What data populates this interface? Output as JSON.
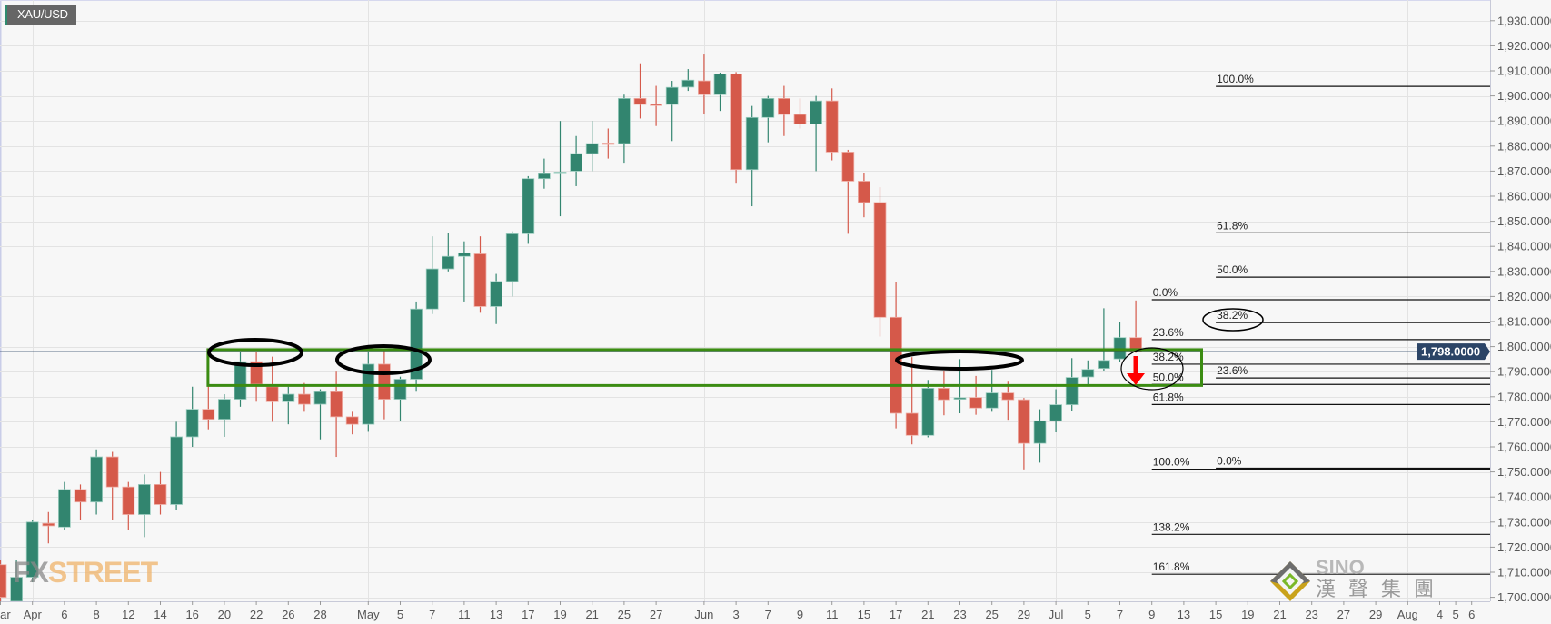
{
  "chart_data": {
    "type": "candlestick",
    "symbol": "XAU/USD",
    "ylim": [
      1700,
      1930
    ],
    "y_tick_labels": [
      "1,700.0000",
      "1,710.0000",
      "1,720.0000",
      "1,730.0000",
      "1,740.0000",
      "1,750.0000",
      "1,760.0000",
      "1,770.0000",
      "1,780.0000",
      "1,790.0000",
      "1,800.0000",
      "1,810.0000",
      "1,820.0000",
      "1,830.0000",
      "1,840.0000",
      "1,850.0000",
      "1,860.0000",
      "1,870.0000",
      "1,880.0000",
      "1,890.0000",
      "1,900.0000",
      "1,910.0000",
      "1,920.0000",
      "1,930.0000"
    ],
    "x_ticks": [
      {
        "label": "Mar",
        "date": "2021-03-30"
      },
      {
        "label": "Apr",
        "date": "2021-04-01"
      },
      {
        "label": "6",
        "date": "2021-04-06"
      },
      {
        "label": "8",
        "date": "2021-04-08"
      },
      {
        "label": "12",
        "date": "2021-04-12"
      },
      {
        "label": "14",
        "date": "2021-04-14"
      },
      {
        "label": "16",
        "date": "2021-04-16"
      },
      {
        "label": "20",
        "date": "2021-04-20"
      },
      {
        "label": "22",
        "date": "2021-04-22"
      },
      {
        "label": "26",
        "date": "2021-04-26"
      },
      {
        "label": "28",
        "date": "2021-04-28"
      },
      {
        "label": "May",
        "date": "2021-05-03"
      },
      {
        "label": "5",
        "date": "2021-05-05"
      },
      {
        "label": "7",
        "date": "2021-05-07"
      },
      {
        "label": "11",
        "date": "2021-05-11"
      },
      {
        "label": "13",
        "date": "2021-05-13"
      },
      {
        "label": "17",
        "date": "2021-05-17"
      },
      {
        "label": "19",
        "date": "2021-05-19"
      },
      {
        "label": "21",
        "date": "2021-05-21"
      },
      {
        "label": "25",
        "date": "2021-05-25"
      },
      {
        "label": "27",
        "date": "2021-05-27"
      },
      {
        "label": "Jun",
        "date": "2021-06-01"
      },
      {
        "label": "3",
        "date": "2021-06-03"
      },
      {
        "label": "7",
        "date": "2021-06-07"
      },
      {
        "label": "9",
        "date": "2021-06-09"
      },
      {
        "label": "11",
        "date": "2021-06-11"
      },
      {
        "label": "15",
        "date": "2021-06-15"
      },
      {
        "label": "17",
        "date": "2021-06-17"
      },
      {
        "label": "21",
        "date": "2021-06-21"
      },
      {
        "label": "23",
        "date": "2021-06-23"
      },
      {
        "label": "25",
        "date": "2021-06-25"
      },
      {
        "label": "29",
        "date": "2021-06-29"
      },
      {
        "label": "Jul",
        "date": "2021-07-01"
      },
      {
        "label": "5",
        "date": "2021-07-05"
      },
      {
        "label": "7",
        "date": "2021-07-07"
      },
      {
        "label": "9",
        "date": "2021-07-09"
      },
      {
        "label": "13",
        "date": "2021-07-13"
      },
      {
        "label": "15",
        "date": "2021-07-15"
      },
      {
        "label": "19",
        "date": "2021-07-19"
      },
      {
        "label": "21",
        "date": "2021-07-21"
      },
      {
        "label": "23",
        "date": "2021-07-23"
      },
      {
        "label": "27",
        "date": "2021-07-27"
      },
      {
        "label": "29",
        "date": "2021-07-29"
      },
      {
        "label": "Aug",
        "date": "2021-08-02"
      },
      {
        "label": "4",
        "date": "2021-08-04"
      },
      {
        "label": "5",
        "date": "2021-08-05"
      },
      {
        "label": "6",
        "date": "2021-08-06"
      }
    ],
    "month_gridlines": [
      "2021-04-01",
      "2021-05-03",
      "2021-06-01",
      "2021-07-01",
      "2021-08-02"
    ],
    "grid": true,
    "candles_columns": [
      "date",
      "open",
      "high",
      "low",
      "close"
    ],
    "candles": [
      [
        "2021-03-30",
        1713,
        1715,
        1698,
        1700
      ],
      [
        "2021-03-31",
        1698,
        1715,
        1697,
        1708
      ],
      [
        "2021-04-01",
        1708,
        1731,
        1706,
        1730
      ],
      [
        "2021-04-05",
        1729.5,
        1734,
        1721.5,
        1728.5
      ],
      [
        "2021-04-06",
        1728,
        1746,
        1727,
        1743
      ],
      [
        "2021-04-07",
        1743,
        1745,
        1731,
        1738
      ],
      [
        "2021-04-08",
        1738,
        1759,
        1733,
        1756
      ],
      [
        "2021-04-09",
        1756,
        1758,
        1731,
        1744
      ],
      [
        "2021-04-12",
        1744,
        1746,
        1727,
        1733
      ],
      [
        "2021-04-13",
        1733,
        1749,
        1724,
        1745
      ],
      [
        "2021-04-14",
        1745,
        1750,
        1733,
        1737
      ],
      [
        "2021-04-15",
        1737,
        1770,
        1735,
        1764
      ],
      [
        "2021-04-16",
        1764,
        1784,
        1760,
        1775
      ],
      [
        "2021-04-19",
        1775,
        1790,
        1767,
        1771
      ],
      [
        "2021-04-20",
        1771,
        1781,
        1764,
        1779
      ],
      [
        "2021-04-21",
        1779,
        1798,
        1776,
        1794
      ],
      [
        "2021-04-22",
        1794,
        1798,
        1778,
        1785
      ],
      [
        "2021-04-23",
        1784,
        1796,
        1770,
        1778
      ],
      [
        "2021-04-26",
        1778,
        1784,
        1769,
        1781
      ],
      [
        "2021-04-27",
        1781,
        1785.5,
        1774,
        1777
      ],
      [
        "2021-04-28",
        1777,
        1783,
        1763,
        1782
      ],
      [
        "2021-04-29",
        1782,
        1790,
        1756,
        1772
      ],
      [
        "2021-04-30",
        1772,
        1774,
        1765,
        1769
      ],
      [
        "2021-05-03",
        1769,
        1798,
        1766,
        1793
      ],
      [
        "2021-05-04",
        1793,
        1799,
        1771,
        1779
      ],
      [
        "2021-05-05",
        1779,
        1788,
        1770.5,
        1787
      ],
      [
        "2021-05-06",
        1787,
        1818,
        1782,
        1815
      ],
      [
        "2021-05-07",
        1815,
        1844,
        1813,
        1831
      ],
      [
        "2021-05-10",
        1831,
        1845.5,
        1830,
        1836
      ],
      [
        "2021-05-11",
        1836,
        1842,
        1818,
        1837.4
      ],
      [
        "2021-05-12",
        1837,
        1844,
        1813.5,
        1816
      ],
      [
        "2021-05-13",
        1816,
        1829,
        1809,
        1826
      ],
      [
        "2021-05-14",
        1826,
        1846,
        1820,
        1845
      ],
      [
        "2021-05-17",
        1845,
        1868,
        1841,
        1867
      ],
      [
        "2021-05-18",
        1867,
        1875,
        1863,
        1869
      ],
      [
        "2021-05-19",
        1869,
        1890,
        1852,
        1869.6
      ],
      [
        "2021-05-20",
        1870,
        1884,
        1864,
        1877
      ],
      [
        "2021-05-21",
        1877,
        1890,
        1870,
        1881
      ],
      [
        "2021-05-24",
        1881.2,
        1887,
        1875,
        1881
      ],
      [
        "2021-05-25",
        1881,
        1900.5,
        1873,
        1899
      ],
      [
        "2021-05-26",
        1899,
        1913,
        1891,
        1896.6
      ],
      [
        "2021-05-27",
        1896.7,
        1904,
        1888,
        1896.4
      ],
      [
        "2021-05-28",
        1896.6,
        1906,
        1882,
        1903.4
      ],
      [
        "2021-05-31",
        1903.5,
        1910.7,
        1902,
        1906.3
      ],
      [
        "2021-06-01",
        1906,
        1916.5,
        1892.6,
        1900.5
      ],
      [
        "2021-06-02",
        1900.5,
        1909.3,
        1894,
        1908.7
      ],
      [
        "2021-06-03",
        1908.7,
        1909.5,
        1865,
        1870.6
      ],
      [
        "2021-06-04",
        1870.6,
        1896,
        1856,
        1891.4
      ],
      [
        "2021-06-07",
        1891.4,
        1900,
        1881.5,
        1899
      ],
      [
        "2021-06-08",
        1899,
        1904,
        1884,
        1892.6
      ],
      [
        "2021-06-09",
        1892.6,
        1899,
        1887,
        1888.8
      ],
      [
        "2021-06-10",
        1888.8,
        1900,
        1870,
        1898
      ],
      [
        "2021-06-11",
        1898,
        1903,
        1874.3,
        1877.6
      ],
      [
        "2021-06-14",
        1877.6,
        1878.5,
        1845,
        1866
      ],
      [
        "2021-06-15",
        1866,
        1869.4,
        1851.6,
        1857.5
      ],
      [
        "2021-06-16",
        1857.5,
        1863.6,
        1804,
        1811.7
      ],
      [
        "2021-06-17",
        1811.7,
        1825.6,
        1767.4,
        1773.4
      ],
      [
        "2021-06-18",
        1773.4,
        1795.8,
        1761,
        1764.6
      ],
      [
        "2021-06-21",
        1764.6,
        1786.7,
        1763.8,
        1783.4
      ],
      [
        "2021-06-22",
        1783.4,
        1790.3,
        1772.6,
        1778.8
      ],
      [
        "2021-06-23",
        1779,
        1795,
        1773.4,
        1779.6
      ],
      [
        "2021-06-24",
        1779.7,
        1788.3,
        1772.8,
        1775.5
      ],
      [
        "2021-06-25",
        1775.5,
        1790.7,
        1774,
        1781.5
      ],
      [
        "2021-06-28",
        1781.5,
        1786,
        1770.8,
        1778.8
      ],
      [
        "2021-06-29",
        1778.8,
        1779.5,
        1751,
        1761.4
      ],
      [
        "2021-06-30",
        1761.4,
        1775,
        1753.7,
        1770.4
      ],
      [
        "2021-07-01",
        1770.4,
        1783,
        1765.8,
        1776.8
      ],
      [
        "2021-07-02",
        1776.8,
        1795.4,
        1774.4,
        1787.7
      ],
      [
        "2021-07-05",
        1787.9,
        1794.5,
        1785,
        1790.9
      ],
      [
        "2021-07-06",
        1791.3,
        1815.3,
        1790.3,
        1794.5
      ],
      [
        "2021-07-07",
        1795.1,
        1810,
        1794,
        1803.6
      ],
      [
        "2021-07-08",
        1803.6,
        1818.4,
        1797.5,
        1798
      ]
    ],
    "current_price": {
      "value": 1798,
      "label": "1,798.0000"
    },
    "fib_sets": [
      {
        "start_date": "2021-07-09",
        "levels": [
          {
            "label": "0.0%",
            "price": 1818.7
          },
          {
            "label": "23.6%",
            "price": 1802.8
          },
          {
            "label": "38.2%",
            "price": 1793.0
          },
          {
            "label": "50.0%",
            "price": 1784.9
          },
          {
            "label": "61.8%",
            "price": 1776.9
          },
          {
            "label": "100.0%",
            "price": 1751.1
          },
          {
            "label": "138.2%",
            "price": 1725.1
          },
          {
            "label": "161.8%",
            "price": 1709.2
          }
        ]
      },
      {
        "start_date": "2021-07-15",
        "levels": [
          {
            "label": "100.0%",
            "price": 1903.8
          },
          {
            "label": "61.8%",
            "price": 1845.4
          },
          {
            "label": "50.0%",
            "price": 1827.7
          },
          {
            "label": "38.2%",
            "price": 1809.6
          },
          {
            "label": "23.6%",
            "price": 1787.5
          },
          {
            "label": "0.0%",
            "price": 1751.5
          }
        ]
      }
    ],
    "zone": {
      "start_date": "2021-04-20",
      "end_date": "2021-07-14",
      "top": 1798.8,
      "bottom": 1784.5
    },
    "colors": {
      "up": "#32856f",
      "down": "#d5594a",
      "zone": "#3b8c12",
      "price_line": "#2b4466",
      "background": "#f7f7f7",
      "arrow": "#ff0000"
    }
  },
  "watermark": {
    "fx": "FX",
    "street": "STREET"
  },
  "logo": {
    "en": "SINO",
    "cn": "漢聲集團"
  }
}
